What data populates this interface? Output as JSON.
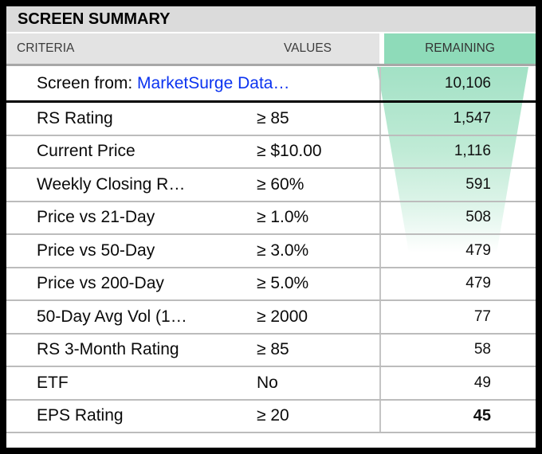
{
  "panel": {
    "title": "SCREEN SUMMARY"
  },
  "table": {
    "columns": [
      "CRITERIA",
      "VALUES",
      "REMAINING"
    ],
    "source_row": {
      "label_prefix": "Screen from: ",
      "label_link": "MarketSurge Data…",
      "remaining": "10,106"
    },
    "rows": [
      {
        "criteria": "RS Rating",
        "value": "≥ 85",
        "remaining": "1,547",
        "bold": false
      },
      {
        "criteria": "Current Price",
        "value": "≥ $10.00",
        "remaining": "1,116",
        "bold": false
      },
      {
        "criteria": "Weekly Closing R…",
        "value": "≥ 60%",
        "remaining": "591",
        "bold": false
      },
      {
        "criteria": "Price vs 21-Day",
        "value": "≥ 1.0%",
        "remaining": "508",
        "bold": false
      },
      {
        "criteria": "Price vs 50-Day",
        "value": "≥ 3.0%",
        "remaining": "479",
        "bold": false
      },
      {
        "criteria": "Price vs 200-Day",
        "value": "≥ 5.0%",
        "remaining": "479",
        "bold": false
      },
      {
        "criteria": "50-Day Avg Vol (1…",
        "value": "≥ 2000",
        "remaining": "77",
        "bold": false
      },
      {
        "criteria": "RS 3-Month Rating",
        "value": "≥ 85",
        "remaining": "58",
        "bold": false
      },
      {
        "criteria": "ETF",
        "value": "No",
        "remaining": "49",
        "bold": false
      },
      {
        "criteria": "EPS Rating",
        "value": "≥ 20",
        "remaining": "45",
        "bold": true
      }
    ]
  },
  "colors": {
    "accent_green": "#8edbb9",
    "funnel_top_green": "#a2e1c5",
    "link_blue": "#0b33f0",
    "titlebar_gray": "#dbdbdb",
    "header_gray": "#e3e3e3"
  }
}
